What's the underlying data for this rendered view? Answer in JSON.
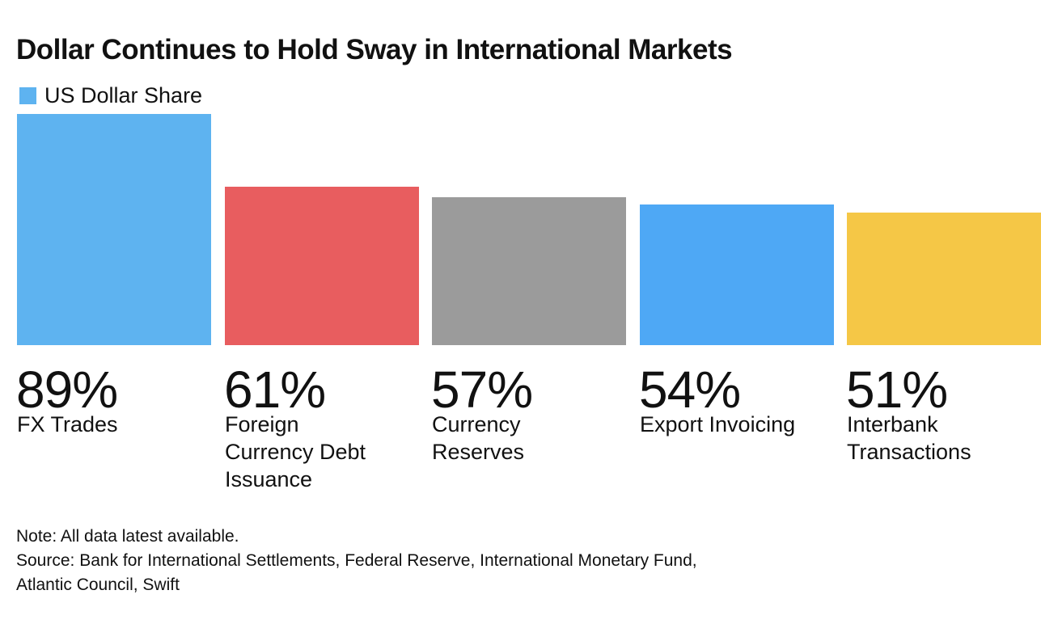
{
  "title": "Dollar Continues to Hold Sway in International Markets",
  "legend": {
    "label": "US Dollar Share",
    "color": "#5eb3f0"
  },
  "chart_data": {
    "type": "bar",
    "title": "Dollar Continues to Hold Sway in International Markets",
    "series": [
      {
        "name": "US Dollar Share",
        "values": [
          89,
          61,
          57,
          54,
          51
        ]
      }
    ],
    "categories": [
      "FX Trades",
      "Foreign Currency Debt Issuance",
      "Currency Reserves",
      "Export Invoicing",
      "Interbank Transactions"
    ],
    "category_lines": [
      [
        "FX Trades"
      ],
      [
        "Foreign",
        "Currency Debt",
        "Issuance"
      ],
      [
        "Currency",
        "Reserves"
      ],
      [
        "Export Invoicing"
      ],
      [
        "Interbank",
        "Transactions"
      ]
    ],
    "value_labels": [
      "89%",
      "61%",
      "57%",
      "54%",
      "51%"
    ],
    "colors": [
      "#5eb3f0",
      "#e85d5f",
      "#9b9b9b",
      "#4ea8f5",
      "#f5c746"
    ],
    "ylim": [
      0,
      89
    ],
    "xlabel": "",
    "ylabel": ""
  },
  "footer": {
    "note": "Note: All data latest available.",
    "source_line1": "Source: Bank for International Settlements, Federal Reserve, International Monetary Fund,",
    "source_line2": "Atlantic Council, Swift"
  }
}
